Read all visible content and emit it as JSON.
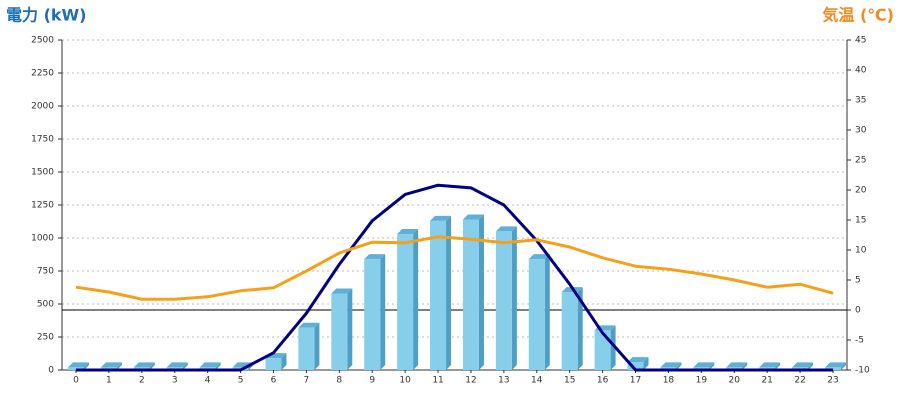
{
  "chart_data": {
    "type": "bar",
    "title": "電力 (kW)",
    "y2_title": "気温 (℃)",
    "title_color": "#1a6fb5",
    "y2_title_color": "#f08c1e",
    "categories": [
      "0",
      "1",
      "2",
      "3",
      "4",
      "5",
      "6",
      "7",
      "8",
      "9",
      "10",
      "11",
      "12",
      "13",
      "14",
      "15",
      "16",
      "17",
      "18",
      "19",
      "20",
      "21",
      "22",
      "23"
    ],
    "series": [
      {
        "type": "bar",
        "color": "#87ceeb",
        "values": [
          20,
          20,
          20,
          20,
          20,
          20,
          90,
          320,
          580,
          840,
          1030,
          1130,
          1140,
          1050,
          840,
          590,
          300,
          60,
          20,
          20,
          20,
          20,
          20,
          20
        ]
      },
      {
        "type": "line",
        "color": "#000080",
        "values": [
          0,
          0,
          0,
          0,
          0,
          0,
          130,
          430,
          800,
          1130,
          1330,
          1400,
          1380,
          1250,
          980,
          650,
          280,
          0,
          0,
          0,
          0,
          0,
          0,
          0
        ]
      },
      {
        "type": "line",
        "color": "#f5a01a",
        "axis": "y2",
        "values": [
          3.8,
          3.0,
          1.8,
          1.8,
          2.2,
          3.2,
          3.7,
          6.5,
          9.5,
          11.3,
          11.2,
          12.2,
          11.8,
          11.2,
          11.7,
          10.5,
          8.7,
          7.3,
          6.8,
          6.0,
          5.0,
          3.8,
          4.3,
          2.8
        ]
      }
    ],
    "ylim": [
      0,
      2500
    ],
    "yticks": [
      0,
      250,
      500,
      750,
      1000,
      1250,
      1500,
      1750,
      2000,
      2250,
      2500
    ],
    "y2lim": [
      -10,
      45
    ],
    "y2ticks": [
      -10,
      -5,
      0,
      5,
      10,
      15,
      20,
      25,
      30,
      35,
      40,
      45
    ],
    "grid": true
  }
}
